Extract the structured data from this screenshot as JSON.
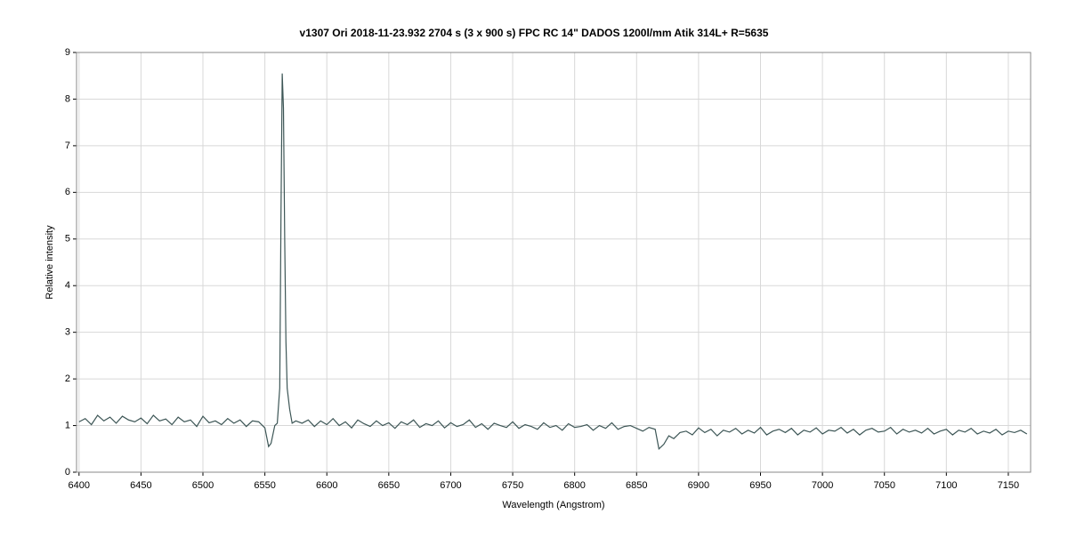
{
  "chart_data": {
    "type": "line",
    "title": "v1307 Ori    2018-11-23.932   2704 s (3 x 900 s)   FPC  RC 14\"  DADOS 1200l/mm  Atik 314L+  R=5635",
    "x_label": "Wavelength (Angstrom)",
    "y_label": "Relative intensity",
    "xlim": [
      6398,
      7168
    ],
    "ylim": [
      0,
      9
    ],
    "xticks": [
      6400,
      6450,
      6500,
      6550,
      6600,
      6650,
      6700,
      6750,
      6800,
      6850,
      6900,
      6950,
      7000,
      7050,
      7100,
      7150
    ],
    "yticks": [
      0,
      1,
      2,
      3,
      4,
      5,
      6,
      7,
      8,
      9
    ],
    "grid": true,
    "color": "#3d5656",
    "x": [
      6400,
      6405,
      6410,
      6415,
      6420,
      6425,
      6430,
      6435,
      6440,
      6445,
      6450,
      6455,
      6460,
      6465,
      6470,
      6475,
      6480,
      6485,
      6490,
      6495,
      6500,
      6505,
      6510,
      6515,
      6520,
      6525,
      6530,
      6535,
      6540,
      6545,
      6550,
      6553,
      6555,
      6558,
      6560,
      6562,
      6563,
      6564,
      6565,
      6566,
      6567,
      6568,
      6570,
      6572,
      6575,
      6580,
      6585,
      6590,
      6595,
      6600,
      6605,
      6610,
      6615,
      6620,
      6625,
      6630,
      6635,
      6640,
      6645,
      6650,
      6655,
      6660,
      6665,
      6670,
      6675,
      6680,
      6685,
      6690,
      6695,
      6700,
      6705,
      6710,
      6715,
      6720,
      6725,
      6730,
      6735,
      6740,
      6745,
      6750,
      6755,
      6760,
      6765,
      6770,
      6775,
      6780,
      6785,
      6790,
      6795,
      6800,
      6805,
      6810,
      6815,
      6820,
      6825,
      6830,
      6835,
      6840,
      6845,
      6850,
      6855,
      6860,
      6865,
      6868,
      6872,
      6876,
      6880,
      6885,
      6890,
      6895,
      6900,
      6905,
      6910,
      6915,
      6920,
      6925,
      6930,
      6935,
      6940,
      6945,
      6950,
      6955,
      6960,
      6965,
      6970,
      6975,
      6980,
      6985,
      6990,
      6995,
      7000,
      7005,
      7010,
      7015,
      7020,
      7025,
      7030,
      7035,
      7040,
      7045,
      7050,
      7055,
      7060,
      7065,
      7070,
      7075,
      7080,
      7085,
      7090,
      7095,
      7100,
      7105,
      7110,
      7115,
      7120,
      7125,
      7130,
      7135,
      7140,
      7145,
      7150,
      7155,
      7160,
      7165
    ],
    "values": [
      1.08,
      1.15,
      1.02,
      1.22,
      1.1,
      1.18,
      1.05,
      1.2,
      1.12,
      1.08,
      1.16,
      1.04,
      1.22,
      1.1,
      1.14,
      1.02,
      1.18,
      1.08,
      1.12,
      0.98,
      1.2,
      1.06,
      1.1,
      1.02,
      1.15,
      1.05,
      1.12,
      0.98,
      1.1,
      1.08,
      0.95,
      0.55,
      0.62,
      1.0,
      1.05,
      1.8,
      5.5,
      8.55,
      7.8,
      5.0,
      2.8,
      1.8,
      1.35,
      1.05,
      1.1,
      1.05,
      1.12,
      0.98,
      1.1,
      1.02,
      1.15,
      1.0,
      1.08,
      0.95,
      1.12,
      1.04,
      0.98,
      1.1,
      1.0,
      1.06,
      0.94,
      1.08,
      1.02,
      1.12,
      0.96,
      1.04,
      1.0,
      1.1,
      0.95,
      1.06,
      0.98,
      1.02,
      1.12,
      0.96,
      1.04,
      0.92,
      1.05,
      1.0,
      0.96,
      1.08,
      0.94,
      1.02,
      0.98,
      0.92,
      1.06,
      0.96,
      1.0,
      0.9,
      1.04,
      0.96,
      0.98,
      1.02,
      0.9,
      1.0,
      0.94,
      1.06,
      0.92,
      0.98,
      1.0,
      0.94,
      0.88,
      0.96,
      0.92,
      0.5,
      0.6,
      0.78,
      0.72,
      0.85,
      0.88,
      0.8,
      0.95,
      0.85,
      0.92,
      0.78,
      0.9,
      0.86,
      0.94,
      0.82,
      0.9,
      0.84,
      0.96,
      0.8,
      0.88,
      0.92,
      0.85,
      0.94,
      0.8,
      0.9,
      0.86,
      0.95,
      0.82,
      0.9,
      0.88,
      0.96,
      0.84,
      0.92,
      0.8,
      0.9,
      0.94,
      0.86,
      0.88,
      0.96,
      0.82,
      0.92,
      0.86,
      0.9,
      0.84,
      0.94,
      0.82,
      0.88,
      0.92,
      0.8,
      0.9,
      0.86,
      0.94,
      0.82,
      0.88,
      0.84,
      0.92,
      0.8,
      0.88,
      0.85,
      0.9,
      0.82
    ]
  }
}
